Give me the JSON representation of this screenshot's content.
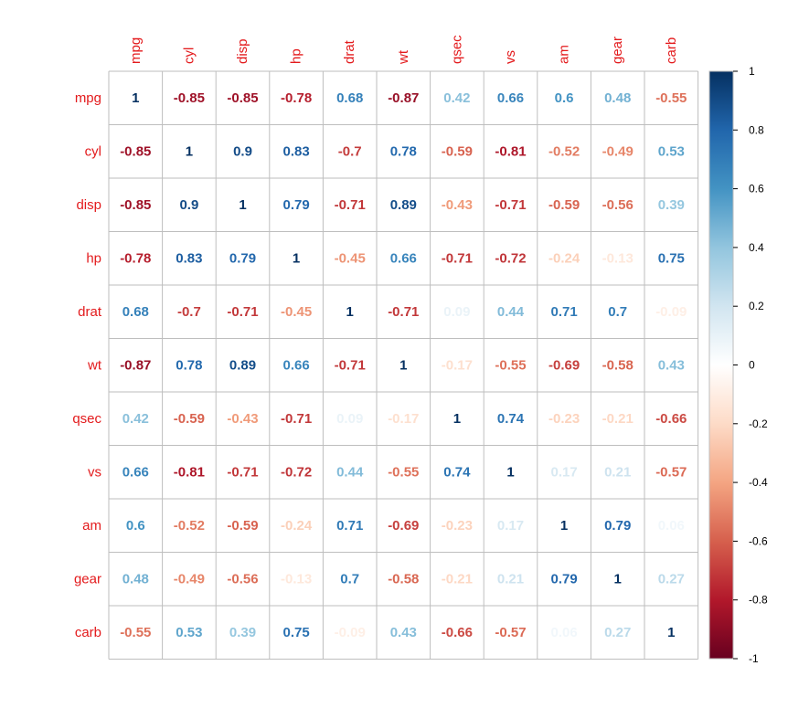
{
  "chart_data": {
    "type": "heatmap",
    "variables": [
      "mpg",
      "cyl",
      "disp",
      "hp",
      "drat",
      "wt",
      "qsec",
      "vs",
      "am",
      "gear",
      "carb"
    ],
    "values": [
      [
        1,
        -0.85,
        -0.85,
        -0.78,
        0.68,
        -0.87,
        0.42,
        0.66,
        0.6,
        0.48,
        -0.55
      ],
      [
        -0.85,
        1,
        0.9,
        0.83,
        -0.7,
        0.78,
        -0.59,
        -0.81,
        -0.52,
        -0.49,
        0.53
      ],
      [
        -0.85,
        0.9,
        1,
        0.79,
        -0.71,
        0.89,
        -0.43,
        -0.71,
        -0.59,
        -0.56,
        0.39
      ],
      [
        -0.78,
        0.83,
        0.79,
        1,
        -0.45,
        0.66,
        -0.71,
        -0.72,
        -0.24,
        -0.13,
        0.75
      ],
      [
        0.68,
        -0.7,
        -0.71,
        -0.45,
        1,
        -0.71,
        0.09,
        0.44,
        0.71,
        0.7,
        -0.09
      ],
      [
        -0.87,
        0.78,
        0.89,
        0.66,
        -0.71,
        1,
        -0.17,
        -0.55,
        -0.69,
        -0.58,
        0.43
      ],
      [
        0.42,
        -0.59,
        -0.43,
        -0.71,
        0.09,
        -0.17,
        1,
        0.74,
        -0.23,
        -0.21,
        -0.66
      ],
      [
        0.66,
        -0.81,
        -0.71,
        -0.72,
        0.44,
        -0.55,
        0.74,
        1,
        0.17,
        0.21,
        -0.57
      ],
      [
        0.6,
        -0.52,
        -0.59,
        -0.24,
        0.71,
        -0.69,
        -0.23,
        0.17,
        1,
        0.79,
        0.06
      ],
      [
        0.48,
        -0.49,
        -0.56,
        -0.13,
        0.7,
        -0.58,
        -0.21,
        0.21,
        0.79,
        1,
        0.27
      ],
      [
        -0.55,
        0.53,
        0.39,
        0.75,
        -0.09,
        0.43,
        -0.66,
        -0.57,
        0.06,
        0.27,
        1
      ]
    ],
    "color_scale": {
      "range": [
        -1,
        1
      ],
      "ticks": [
        "1",
        "0.8",
        "0.6",
        "0.4",
        "0.2",
        "0",
        "-0.2",
        "-0.4",
        "-0.6",
        "-0.8",
        "-1"
      ],
      "colors": [
        "#67001F",
        "#B2182B",
        "#D6604D",
        "#F4A582",
        "#FDDBC7",
        "#FFFFFF",
        "#D1E5F0",
        "#92C5DE",
        "#4393C3",
        "#2166AC",
        "#053061"
      ]
    },
    "label_color": "#E31A1C",
    "grid_color": "#BEBEBE",
    "legend_position": "right",
    "method": "number"
  }
}
